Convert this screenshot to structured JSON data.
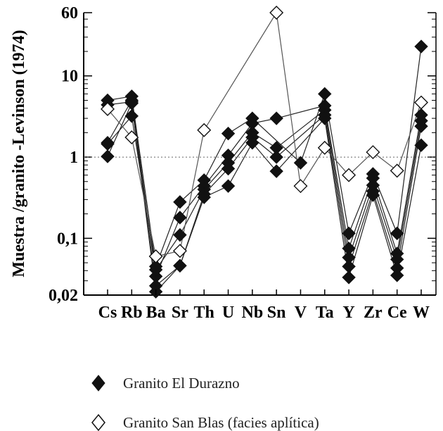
{
  "chart_data": {
    "type": "line",
    "title": "",
    "xlabel": "",
    "ylabel": "Muestra /granito -Levinson (1974)",
    "yscale": "log",
    "ylim": [
      0.02,
      60
    ],
    "yticks": [
      {
        "value": 60,
        "label": "60"
      },
      {
        "value": 10,
        "label": "10"
      },
      {
        "value": 1,
        "label": "1"
      },
      {
        "value": 0.1,
        "label": "0,1"
      },
      {
        "value": 0.02,
        "label": "0,02"
      }
    ],
    "reference_line": 1,
    "categories": [
      "Cs",
      "Rb",
      "Ba",
      "Sr",
      "Th",
      "U",
      "Nb",
      "Sn",
      "V",
      "Ta",
      "Y",
      "Zr",
      "Ce",
      "W"
    ],
    "legend_position": "bottom",
    "groups": [
      {
        "name": "Granito El Durazno",
        "marker": "filled-diamond",
        "color": "#111111",
        "series": [
          {
            "values": [
              5.0,
              5.6,
              0.045,
              0.28,
              0.52,
              1.95,
              3.0,
              null,
              0.85,
              6.0,
              0.115,
              0.62,
              0.115,
              23.0
            ]
          },
          {
            "values": [
              1.5,
              5.0,
              0.034,
              0.18,
              0.44,
              1.05,
              2.6,
              3.0,
              null,
              4.3,
              0.075,
              0.55,
              0.065,
              3.3
            ]
          },
          {
            "values": [
              1.45,
              3.2,
              0.041,
              0.11,
              0.4,
              0.85,
              2.0,
              1.3,
              null,
              3.8,
              0.058,
              0.45,
              0.055,
              2.8
            ]
          },
          {
            "values": [
              1.02,
              4.6,
              0.026,
              0.046,
              0.35,
              0.72,
              1.75,
              1.0,
              null,
              3.3,
              0.045,
              0.38,
              0.043,
              2.4
            ]
          },
          {
            "values": [
              4.4,
              4.8,
              0.022,
              0.046,
              0.32,
              0.44,
              1.5,
              0.67,
              null,
              3.0,
              0.033,
              0.34,
              0.035,
              1.4
            ]
          }
        ]
      },
      {
        "name": "Granito San Blas (facies aplítica)",
        "marker": "open-diamond",
        "color": "#111111",
        "series": [
          {
            "values": [
              3.9,
              1.75,
              0.06,
              0.07,
              2.15,
              null,
              null,
              60.0,
              0.44,
              1.3,
              0.6,
              1.15,
              0.68,
              4.7
            ]
          }
        ]
      }
    ]
  },
  "legend": {
    "items": [
      {
        "label": "Granito El Durazno",
        "marker": "filled-diamond"
      },
      {
        "label": "Granito San Blas (facies aplítica)",
        "marker": "open-diamond"
      }
    ]
  }
}
